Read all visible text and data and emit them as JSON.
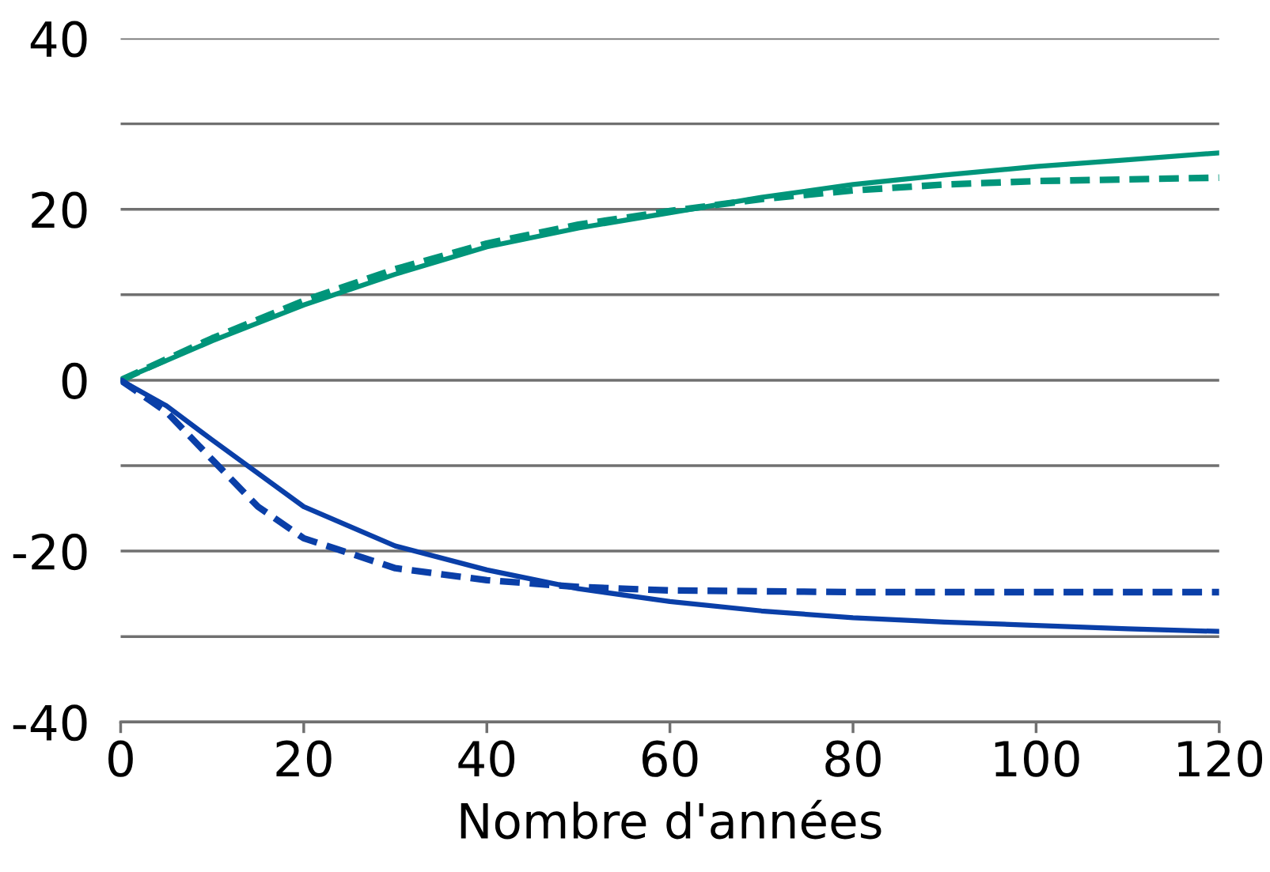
{
  "chart_data": {
    "type": "line",
    "xlabel": "Nombre d'années",
    "series": [
      {
        "color": "#00957a",
        "line_style": "solid",
        "x": [
          0,
          10,
          20,
          30,
          40,
          50,
          60,
          70,
          80,
          90,
          100,
          110,
          120
        ],
        "values": [
          0,
          4.6,
          8.8,
          12.4,
          15.6,
          17.8,
          19.6,
          21.4,
          22.9,
          24.0,
          25.0,
          25.8,
          26.6
        ]
      },
      {
        "color": "#00957a",
        "line_style": "dashed",
        "x": [
          0,
          10,
          20,
          30,
          40,
          50,
          60,
          70,
          80,
          90,
          100,
          110,
          120
        ],
        "values": [
          0,
          4.9,
          9.3,
          13.0,
          16.0,
          18.2,
          19.8,
          21.2,
          22.2,
          22.9,
          23.3,
          23.5,
          23.7
        ]
      },
      {
        "color": "#0a3fa8",
        "line_style": "solid",
        "x": [
          0,
          5,
          10,
          20,
          30,
          40,
          50,
          60,
          70,
          80,
          90,
          100,
          110,
          120
        ],
        "values": [
          0,
          -3.0,
          -7.0,
          -14.8,
          -19.4,
          -22.2,
          -24.4,
          -25.9,
          -27.0,
          -27.8,
          -28.3,
          -28.7,
          -29.1,
          -29.4
        ]
      },
      {
        "color": "#0a3fa8",
        "line_style": "dashed",
        "x": [
          0,
          5,
          10,
          15,
          20,
          30,
          40,
          50,
          60,
          80,
          100,
          120
        ],
        "values": [
          0,
          -3.7,
          -9.3,
          -14.8,
          -18.5,
          -22.0,
          -23.4,
          -24.2,
          -24.6,
          -24.8,
          -24.8,
          -24.8
        ]
      }
    ],
    "xlim": [
      0,
      120
    ],
    "xticks": [
      0,
      20,
      40,
      60,
      80,
      100,
      120
    ],
    "ylim": [
      -40,
      40
    ],
    "yticks": [
      {
        "value": -40,
        "label": "-40"
      },
      {
        "value": -30,
        "label": null
      },
      {
        "value": -20,
        "label": "-20"
      },
      {
        "value": -10,
        "label": null
      },
      0,
      {
        "value": 10,
        "label": null
      },
      20,
      {
        "value": 30,
        "label": null
      },
      40
    ],
    "grid": "y",
    "legend": false
  }
}
